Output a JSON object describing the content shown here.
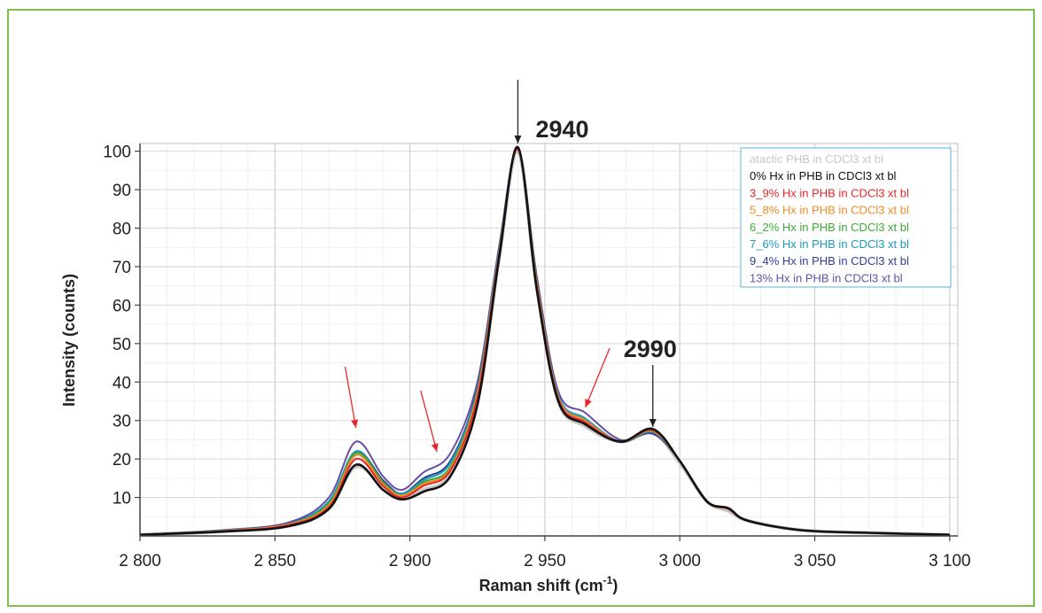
{
  "chart_data": {
    "type": "line",
    "xlabel": "Raman shift (cm",
    "xlabel_sup": "-1",
    "xlabel_close": ")",
    "ylabel": "Intensity (counts)",
    "xlim": [
      2800,
      3103
    ],
    "ylim": [
      0,
      102
    ],
    "xticks": [
      2800,
      2850,
      2900,
      2950,
      3000,
      3050,
      3100
    ],
    "xtick_labels": [
      "2 800",
      "2 850",
      "2 900",
      "2 950",
      "3 000",
      "3 050",
      "3 100"
    ],
    "yticks": [
      10,
      20,
      30,
      40,
      50,
      60,
      70,
      80,
      90,
      100
    ],
    "ytick_labels": [
      "10",
      "20",
      "30",
      "40",
      "50",
      "60",
      "70",
      "80",
      "90",
      "100"
    ],
    "grid": true,
    "legend_position": "top-right",
    "annotations": [
      {
        "text": "2940",
        "x": 2940
      },
      {
        "text": "2990",
        "x": 2990
      }
    ],
    "series": [
      {
        "name": "atactic PHB in CDCl3 xt bl",
        "color": "#c8c8c8",
        "values": [
          [
            2800,
            0.3
          ],
          [
            2830,
            1.2
          ],
          [
            2855,
            3
          ],
          [
            2870,
            8
          ],
          [
            2880,
            18
          ],
          [
            2890,
            13
          ],
          [
            2897,
            10
          ],
          [
            2905,
            12
          ],
          [
            2915,
            16
          ],
          [
            2925,
            35
          ],
          [
            2933,
            72
          ],
          [
            2940,
            100
          ],
          [
            2947,
            65
          ],
          [
            2955,
            35
          ],
          [
            2965,
            28.5
          ],
          [
            2978,
            24.5
          ],
          [
            2990,
            27
          ],
          [
            3000,
            19
          ],
          [
            3010,
            9
          ],
          [
            3018,
            6.5
          ],
          [
            3025,
            4
          ],
          [
            3045,
            1.5
          ],
          [
            3070,
            0.8
          ],
          [
            3100,
            0.3
          ]
        ]
      },
      {
        "name": "0% Hx in PHB in CDCl3 xt bl",
        "color": "#111111",
        "values": [
          [
            2800,
            0.3
          ],
          [
            2830,
            1.1
          ],
          [
            2855,
            2.5
          ],
          [
            2870,
            7
          ],
          [
            2880,
            18.5
          ],
          [
            2890,
            12
          ],
          [
            2897,
            9.5
          ],
          [
            2905,
            11.5
          ],
          [
            2915,
            15.5
          ],
          [
            2925,
            34
          ],
          [
            2933,
            72
          ],
          [
            2940,
            101
          ],
          [
            2947,
            64
          ],
          [
            2955,
            35
          ],
          [
            2965,
            29
          ],
          [
            2978,
            24.5
          ],
          [
            2990,
            27.8
          ],
          [
            3000,
            19.5
          ],
          [
            3010,
            9
          ],
          [
            3018,
            7.2
          ],
          [
            3025,
            4
          ],
          [
            3045,
            1.5
          ],
          [
            3070,
            0.8
          ],
          [
            3100,
            0.3
          ]
        ]
      },
      {
        "name": "3_9% Hx in PHB in CDCl3 xt bl",
        "color": "#e8262a",
        "values": [
          [
            2800,
            0.3
          ],
          [
            2830,
            1.2
          ],
          [
            2855,
            2.8
          ],
          [
            2870,
            7.5
          ],
          [
            2880,
            20
          ],
          [
            2890,
            13
          ],
          [
            2897,
            10
          ],
          [
            2905,
            13
          ],
          [
            2915,
            17
          ],
          [
            2925,
            36
          ],
          [
            2933,
            73
          ],
          [
            2940,
            100.5
          ],
          [
            2947,
            65
          ],
          [
            2955,
            35.5
          ],
          [
            2965,
            29.5
          ],
          [
            2978,
            24.5
          ],
          [
            2990,
            27.5
          ],
          [
            3000,
            19.5
          ],
          [
            3010,
            9
          ],
          [
            3018,
            7
          ],
          [
            3025,
            4
          ],
          [
            3045,
            1.5
          ],
          [
            3070,
            0.8
          ],
          [
            3100,
            0.3
          ]
        ]
      },
      {
        "name": "5_8% Hx in PHB in CDCl3 xt bl",
        "color": "#f08a24",
        "values": [
          [
            2800,
            0.3
          ],
          [
            2830,
            1.3
          ],
          [
            2855,
            3
          ],
          [
            2870,
            8
          ],
          [
            2880,
            21
          ],
          [
            2890,
            13.5
          ],
          [
            2897,
            10.5
          ],
          [
            2905,
            13.5
          ],
          [
            2915,
            17.5
          ],
          [
            2925,
            37
          ],
          [
            2933,
            73
          ],
          [
            2940,
            100.5
          ],
          [
            2947,
            65.5
          ],
          [
            2955,
            36
          ],
          [
            2965,
            30
          ],
          [
            2978,
            24.5
          ],
          [
            2990,
            27.3
          ],
          [
            3000,
            19.5
          ],
          [
            3010,
            9
          ],
          [
            3018,
            7
          ],
          [
            3025,
            4
          ],
          [
            3045,
            1.5
          ],
          [
            3070,
            0.8
          ],
          [
            3100,
            0.3
          ]
        ]
      },
      {
        "name": "6_2% Hx in PHB in CDCl3 xt bl",
        "color": "#3aaa35",
        "values": [
          [
            2800,
            0.3
          ],
          [
            2830,
            1.3
          ],
          [
            2855,
            3
          ],
          [
            2870,
            8.5
          ],
          [
            2880,
            21.5
          ],
          [
            2890,
            14
          ],
          [
            2897,
            10.5
          ],
          [
            2905,
            14
          ],
          [
            2915,
            18
          ],
          [
            2925,
            37.5
          ],
          [
            2933,
            73.5
          ],
          [
            2940,
            100.5
          ],
          [
            2947,
            66
          ],
          [
            2955,
            36
          ],
          [
            2965,
            30
          ],
          [
            2978,
            24.5
          ],
          [
            2990,
            27.2
          ],
          [
            3000,
            19.5
          ],
          [
            3010,
            9
          ],
          [
            3018,
            7
          ],
          [
            3025,
            4
          ],
          [
            3045,
            1.5
          ],
          [
            3070,
            0.8
          ],
          [
            3100,
            0.3
          ]
        ]
      },
      {
        "name": "7_6% Hx in PHB in CDCl3 xt bl",
        "color": "#1a9bbf",
        "values": [
          [
            2800,
            0.3
          ],
          [
            2830,
            1.4
          ],
          [
            2855,
            3.1
          ],
          [
            2870,
            9
          ],
          [
            2880,
            22
          ],
          [
            2890,
            14
          ],
          [
            2897,
            11
          ],
          [
            2905,
            14.5
          ],
          [
            2915,
            19
          ],
          [
            2925,
            38
          ],
          [
            2933,
            74
          ],
          [
            2940,
            100.5
          ],
          [
            2947,
            66
          ],
          [
            2955,
            36.5
          ],
          [
            2965,
            30.5
          ],
          [
            2978,
            24.5
          ],
          [
            2990,
            27
          ],
          [
            3000,
            19.5
          ],
          [
            3010,
            9
          ],
          [
            3018,
            7
          ],
          [
            3025,
            4
          ],
          [
            3045,
            1.5
          ],
          [
            3070,
            0.8
          ],
          [
            3100,
            0.3
          ]
        ]
      },
      {
        "name": "9_4% Hx in PHB in CDCl3 xt bl",
        "color": "#2e3f93",
        "values": [
          [
            2800,
            0.3
          ],
          [
            2830,
            1.4
          ],
          [
            2855,
            3.2
          ],
          [
            2870,
            9
          ],
          [
            2880,
            22
          ],
          [
            2890,
            14.5
          ],
          [
            2897,
            11
          ],
          [
            2905,
            15
          ],
          [
            2915,
            19.5
          ],
          [
            2925,
            38.5
          ],
          [
            2933,
            74
          ],
          [
            2940,
            100.5
          ],
          [
            2947,
            66.5
          ],
          [
            2955,
            36.5
          ],
          [
            2965,
            30.5
          ],
          [
            2978,
            24.5
          ],
          [
            2990,
            26.8
          ],
          [
            3000,
            19.5
          ],
          [
            3010,
            9
          ],
          [
            3018,
            7
          ],
          [
            3025,
            4
          ],
          [
            3045,
            1.5
          ],
          [
            3070,
            0.8
          ],
          [
            3100,
            0.3
          ]
        ]
      },
      {
        "name": "13% Hx in PHB in CDCl3 xt bl",
        "color": "#6a4ea6",
        "values": [
          [
            2800,
            0.3
          ],
          [
            2830,
            1.5
          ],
          [
            2855,
            3.5
          ],
          [
            2870,
            10
          ],
          [
            2880,
            24.5
          ],
          [
            2890,
            15.5
          ],
          [
            2897,
            12
          ],
          [
            2905,
            16.5
          ],
          [
            2915,
            21.5
          ],
          [
            2925,
            40
          ],
          [
            2933,
            75
          ],
          [
            2940,
            100.5
          ],
          [
            2947,
            67.5
          ],
          [
            2955,
            37.5
          ],
          [
            2965,
            32
          ],
          [
            2978,
            25
          ],
          [
            2990,
            26.5
          ],
          [
            3000,
            19.5
          ],
          [
            3010,
            9
          ],
          [
            3018,
            7
          ],
          [
            3025,
            4
          ],
          [
            3045,
            1.5
          ],
          [
            3070,
            0.8
          ],
          [
            3100,
            0.3
          ]
        ]
      }
    ]
  }
}
